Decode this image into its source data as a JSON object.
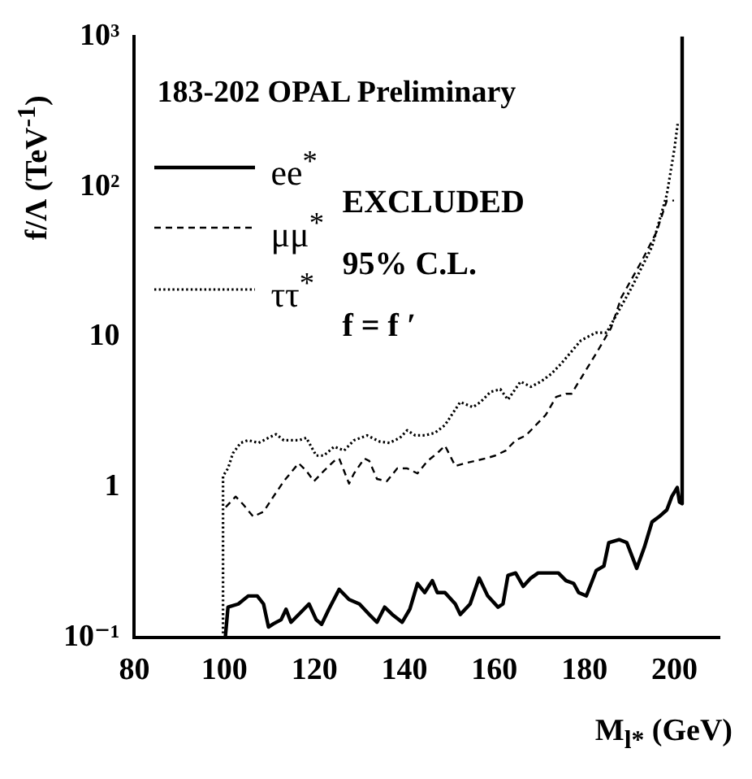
{
  "chart_data": {
    "type": "line",
    "title": "183-202 OPAL Preliminary",
    "xlabel": "M$_{l*}$ (GeV)",
    "ylabel": "f/Λ (TeV$^{-1}$)",
    "annotations": [
      "EXCLUDED",
      "95% C.L.",
      "f = f ′"
    ],
    "log": "y",
    "xlim": [
      80,
      210
    ],
    "xticks": [
      80,
      100,
      120,
      140,
      160,
      180,
      200
    ],
    "ylim": [
      0.1,
      1000
    ],
    "yticks": [
      {
        "value": 0.1,
        "label": "10⁻¹"
      },
      1,
      10,
      {
        "value": 100,
        "label": "10²"
      },
      {
        "value": 1000,
        "label": "10³"
      }
    ],
    "grid": false,
    "legend": "top left",
    "marker": "none",
    "series": [
      {
        "name": "ee$^{*}$",
        "color": "#000000",
        "line_style": "solid",
        "x": [
          100.2,
          100.3,
          100.8,
          103.1,
          105.3,
          107.3,
          108.7,
          109.8,
          110.9,
          112.6,
          113.7,
          114.8,
          116.5,
          118.8,
          120.4,
          121.6,
          123.2,
          125.5,
          127.7,
          130.0,
          132.2,
          133.9,
          135.6,
          137.3,
          139.5,
          141.2,
          142.9,
          144.5,
          146.2,
          147.3,
          149.0,
          151.3,
          152.4,
          154.6,
          156.6,
          158.5,
          160.8,
          161.9,
          163.0,
          164.7,
          166.4,
          168.1,
          169.7,
          172.6,
          174.2,
          175.9,
          177.6,
          178.7,
          180.4,
          181.5,
          182.6,
          184.3,
          185.4,
          187.7,
          189.4,
          191.6,
          193.3,
          195.0,
          196.6,
          198.3,
          199.4,
          200.6,
          201.1,
          201.7,
          201.7
        ],
        "values": [
          0.1,
          0.1,
          0.16,
          0.168,
          0.19,
          0.19,
          0.168,
          0.118,
          0.124,
          0.132,
          0.155,
          0.127,
          0.143,
          0.168,
          0.132,
          0.123,
          0.155,
          0.21,
          0.18,
          0.168,
          0.143,
          0.127,
          0.16,
          0.143,
          0.127,
          0.155,
          0.23,
          0.2,
          0.24,
          0.2,
          0.2,
          0.168,
          0.143,
          0.168,
          0.25,
          0.19,
          0.16,
          0.168,
          0.26,
          0.27,
          0.22,
          0.25,
          0.27,
          0.27,
          0.27,
          0.24,
          0.23,
          0.2,
          0.19,
          0.23,
          0.28,
          0.3,
          0.43,
          0.45,
          0.43,
          0.29,
          0.4,
          0.59,
          0.64,
          0.71,
          0.87,
          1.0,
          0.8,
          0.78,
          1000
        ]
      },
      {
        "name": "μμ$^{*}$",
        "color": "#000000",
        "line_style": "dashed",
        "x": [
          100.3,
          102.5,
          104.2,
          106.4,
          108.7,
          110.9,
          113.2,
          116.5,
          118.2,
          119.9,
          122.1,
          124.4,
          125.5,
          127.7,
          128.8,
          131.1,
          132.2,
          133.9,
          136.1,
          138.4,
          140.6,
          142.9,
          145.1,
          147.3,
          149.0,
          151.3,
          153.5,
          158.0,
          160.2,
          162.5,
          164.7,
          167.0,
          169.2,
          171.4,
          173.7,
          175.9,
          177.1,
          182.5,
          185.9,
          188.2,
          192.6,
          196.0,
          198.3,
          199.9
        ],
        "values": [
          0.74,
          0.87,
          0.77,
          0.64,
          0.69,
          0.87,
          1.1,
          1.45,
          1.29,
          1.1,
          1.29,
          1.5,
          1.56,
          1.06,
          1.24,
          1.56,
          1.5,
          1.14,
          1.1,
          1.34,
          1.34,
          1.24,
          1.5,
          1.69,
          1.9,
          1.39,
          1.45,
          1.56,
          1.63,
          1.76,
          2.06,
          2.22,
          2.6,
          3.04,
          4.0,
          4.2,
          4.2,
          7.7,
          11.5,
          18.4,
          31.6,
          50,
          81,
          81
        ]
      },
      {
        "name": "ττ$^{*}$",
        "color": "#000000",
        "line_style": "dotted",
        "x": [
          99.7,
          99.7,
          100.8,
          101.9,
          103.6,
          105.3,
          107.6,
          109.8,
          111.5,
          113.2,
          116.5,
          118.2,
          120.4,
          122.1,
          124.4,
          126.6,
          128.8,
          131.7,
          134.5,
          136.7,
          139.0,
          140.6,
          142.4,
          144.5,
          146.8,
          149.0,
          152.4,
          155.2,
          156.9,
          159.1,
          161.3,
          163.0,
          165.8,
          168.1,
          170.3,
          172.6,
          174.8,
          179.2,
          182.5,
          184.9,
          190.6,
          195.0,
          198.3,
          200.0,
          200.7
        ],
        "values": [
          0.1,
          1.19,
          1.34,
          1.69,
          1.98,
          2.06,
          1.98,
          2.14,
          2.26,
          2.06,
          2.06,
          2.14,
          1.63,
          1.63,
          1.87,
          1.76,
          2.06,
          2.22,
          2.02,
          1.98,
          2.14,
          2.4,
          2.22,
          2.22,
          2.31,
          2.6,
          3.7,
          3.42,
          3.7,
          4.32,
          4.5,
          3.84,
          5.06,
          4.68,
          5.06,
          5.69,
          6.65,
          9.5,
          10.7,
          10.7,
          21.7,
          40,
          89,
          180,
          262
        ]
      }
    ]
  }
}
